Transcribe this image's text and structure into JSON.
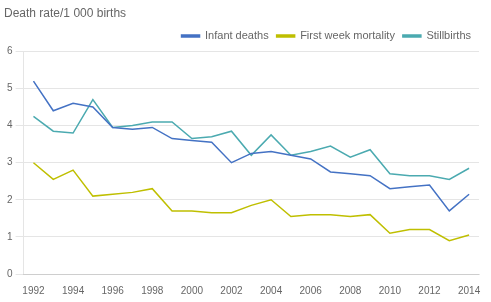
{
  "chart_data": {
    "type": "line",
    "ylabel": "Death rate/1 000 births",
    "x": [
      1992,
      1993,
      1994,
      1995,
      1996,
      1997,
      1998,
      1999,
      2000,
      2001,
      2002,
      2003,
      2004,
      2005,
      2006,
      2007,
      2008,
      2009,
      2010,
      2011,
      2012,
      2013,
      2014
    ],
    "series": [
      {
        "name": "Infant deaths",
        "color": "#4472C4",
        "values": [
          5.2,
          4.4,
          4.6,
          4.5,
          3.95,
          3.9,
          3.95,
          3.65,
          3.6,
          3.55,
          3.0,
          3.25,
          3.3,
          3.2,
          3.1,
          2.75,
          2.7,
          2.65,
          2.3,
          2.35,
          2.4,
          1.7,
          2.15
        ]
      },
      {
        "name": "First week mortality",
        "color": "#BFBF00",
        "values": [
          3.0,
          2.55,
          2.8,
          2.1,
          2.15,
          2.2,
          2.3,
          1.7,
          1.7,
          1.65,
          1.65,
          1.85,
          2.0,
          1.55,
          1.6,
          1.6,
          1.55,
          1.6,
          1.1,
          1.2,
          1.2,
          0.9,
          1.05
        ]
      },
      {
        "name": "Stillbirths",
        "color": "#4BAAB0",
        "values": [
          4.25,
          3.85,
          3.8,
          4.7,
          3.95,
          4.0,
          4.1,
          4.1,
          3.65,
          3.7,
          3.85,
          3.2,
          3.75,
          3.2,
          3.3,
          3.45,
          3.15,
          3.35,
          2.7,
          2.65,
          2.65,
          2.55,
          2.85
        ]
      }
    ],
    "xlim": [
      1991.5,
      2014.5
    ],
    "xticks": [
      1992,
      1994,
      1996,
      1998,
      2000,
      2002,
      2004,
      2006,
      2008,
      2010,
      2012,
      2014
    ],
    "ylim": [
      0,
      6
    ],
    "yticks": [
      0,
      1,
      2,
      3,
      4,
      5,
      6
    ],
    "grid": true,
    "legend": "upper right"
  }
}
